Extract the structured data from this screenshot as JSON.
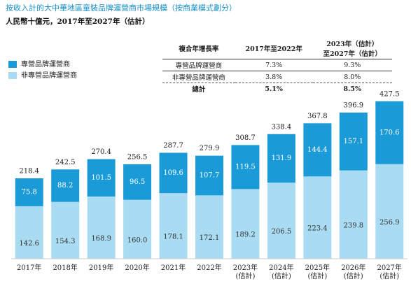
{
  "chart_data": {
    "type": "bar",
    "stacked": true,
    "title": "按收入計的大中華地區童裝品牌運營商市場規模（按商業模式劃分）",
    "subtitle": "人民幣十億元，2017年至2027年（估計）",
    "categories": [
      "2017年",
      "2018年",
      "2019年",
      "2020年",
      "2021年",
      "2022年",
      "2023年\n(估計)",
      "2024年\n(估計)",
      "2025年\n(估計)",
      "2026年\n(估計)",
      "2027年\n(估計)"
    ],
    "series": [
      {
        "name": "非專營品牌運營商",
        "color": "#a9dcf3",
        "values": [
          142.6,
          154.3,
          168.9,
          160.0,
          178.1,
          172.1,
          189.2,
          206.5,
          223.4,
          239.8,
          256.9
        ],
        "value_labels": [
          "142.6",
          "154.3",
          "168.9",
          "160.0",
          "178.1",
          "172.1",
          "189.2",
          "206.5",
          "223.4",
          "239.8",
          "256.9"
        ]
      },
      {
        "name": "專營品牌運營商",
        "color": "#1a9bd7",
        "values": [
          75.8,
          88.2,
          101.5,
          96.5,
          109.6,
          107.7,
          119.5,
          131.9,
          144.4,
          157.1,
          170.6
        ]
      }
    ],
    "totals": [
      218.4,
      242.5,
      270.4,
      256.5,
      287.7,
      279.9,
      308.7,
      338.4,
      367.8,
      396.9,
      427.5
    ],
    "ylim": [
      0,
      450
    ],
    "legend": "top-left",
    "cagr_table": {
      "header": [
        "複合年增長率",
        "2017年至2022年",
        "2023年（估計）\n至2027年（估計）"
      ],
      "rows": [
        [
          "專營品牌運營商",
          "7.3%",
          "9.3%"
        ],
        [
          "非專營品牌運營商",
          "3.8%",
          "8.0%"
        ],
        [
          "總計",
          "5.1%",
          "8.5%"
        ]
      ]
    }
  }
}
